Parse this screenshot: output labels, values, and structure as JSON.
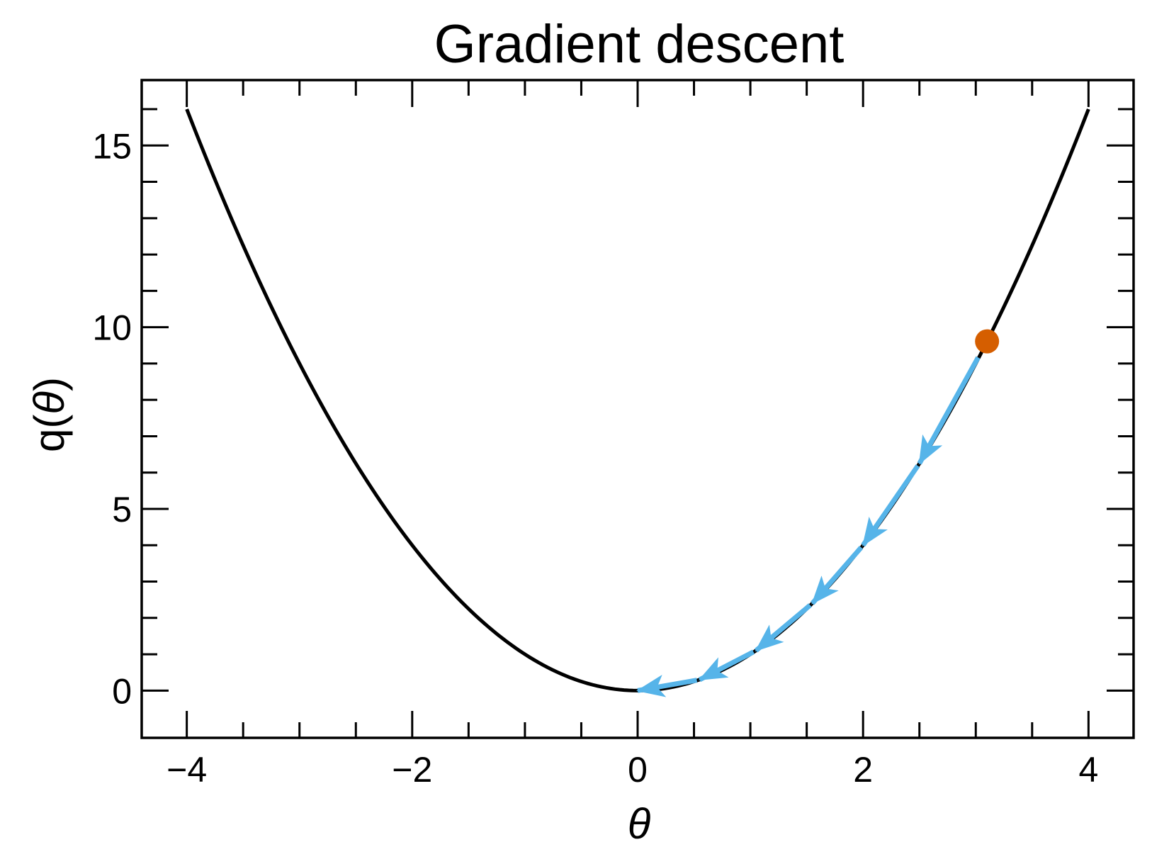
{
  "chart_data": {
    "type": "line",
    "title": "Gradient descent",
    "xlabel": "θ",
    "ylabel_prefix": "q(",
    "ylabel_symbol": "θ",
    "ylabel_suffix": ")",
    "xlim": [
      -4.4,
      4.4
    ],
    "ylim": [
      -1.3,
      16.8
    ],
    "x_ticks": [
      -4,
      -2,
      0,
      2,
      4
    ],
    "x_tick_labels": [
      "−4",
      "−2",
      "0",
      "2",
      "4"
    ],
    "x_minor_step": 0.5,
    "y_ticks": [
      0,
      5,
      10,
      15
    ],
    "y_tick_labels": [
      "0",
      "5",
      "10",
      "15"
    ],
    "y_minor_step": 1,
    "grid": false,
    "series": [
      {
        "kind": "curve",
        "function": "theta^2",
        "x_range": [
          -4,
          4
        ],
        "color": "#000000"
      },
      {
        "kind": "start_point",
        "x": 3.1,
        "y": 9.61,
        "color": "#D55E00"
      },
      {
        "kind": "arrows",
        "color": "#56B4E9",
        "points": [
          [
            3.1,
            9.61
          ],
          [
            2.5,
            6.25
          ],
          [
            2.0,
            4.0
          ],
          [
            1.55,
            2.4
          ],
          [
            1.05,
            1.1
          ],
          [
            0.55,
            0.3
          ],
          [
            0.0,
            0.0
          ]
        ]
      }
    ]
  }
}
